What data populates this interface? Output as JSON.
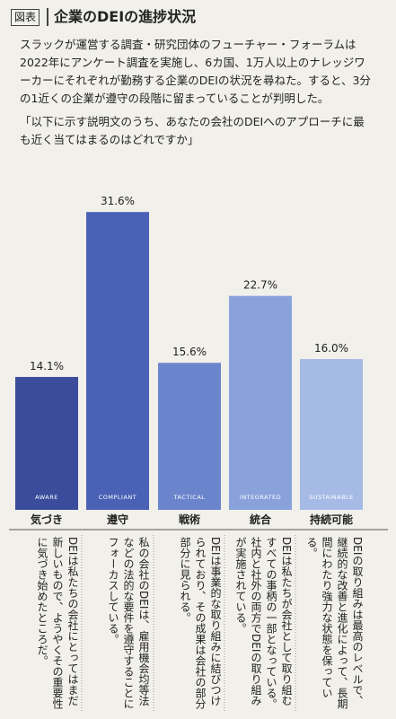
{
  "chart_data": {
    "type": "bar",
    "label": "図表",
    "title": "企業のDEIの進捗状況",
    "subtitle": "スラックが運営する調査・研究団体のフューチャー・フォーラムは2022年にアンケート調査を実施し、6カ国、1万人以上のナレッジワーカーにそれぞれが勤務する企業のDEIの状況を尋ねた。すると、3分の1近くの企業が遵守の段階に留まっていることが判明した。",
    "question": "「以下に示す説明文のうち、あなたの会社のDEIへのアプローチに最も近く当てはまるのはどれですか」",
    "categories": [
      "AWARE",
      "COMPLIANT",
      "TACTICAL",
      "INTEGRATED",
      "SUSTAINABLE"
    ],
    "category_names": [
      "気づき",
      "遵守",
      "戦術",
      "統合",
      "持続可能"
    ],
    "values": [
      14.1,
      31.6,
      15.6,
      22.7,
      16.0
    ],
    "value_labels": [
      "14.1%",
      "31.6%",
      "15.6%",
      "22.7%",
      "16.0%"
    ],
    "colors": [
      "#3b4c9c",
      "#4a62b6",
      "#6b85cd",
      "#89a2dc",
      "#a6bae6"
    ],
    "descriptions": [
      "DEIは私たちの会社にとってはまだ新しいもので、ようやくその重要性に気づき始めたところだ。",
      "私の会社のDEIは、雇用機会均等法などの法的な要件を遵守することにフォーカスしている。",
      "DEIは事業的な取り組みに結びつけられており、その成果は会社の部分部分に見られる。",
      "DEIは私たちが会社として取り組むすべての事柄の一部となっている。社内と社外の両方でDEIの取り組みが実施されている。",
      "DEIの取り組みは最高のレベルで、継続的な改善と進化によって、長期間にわたり強力な状態を保っている。"
    ]
  }
}
